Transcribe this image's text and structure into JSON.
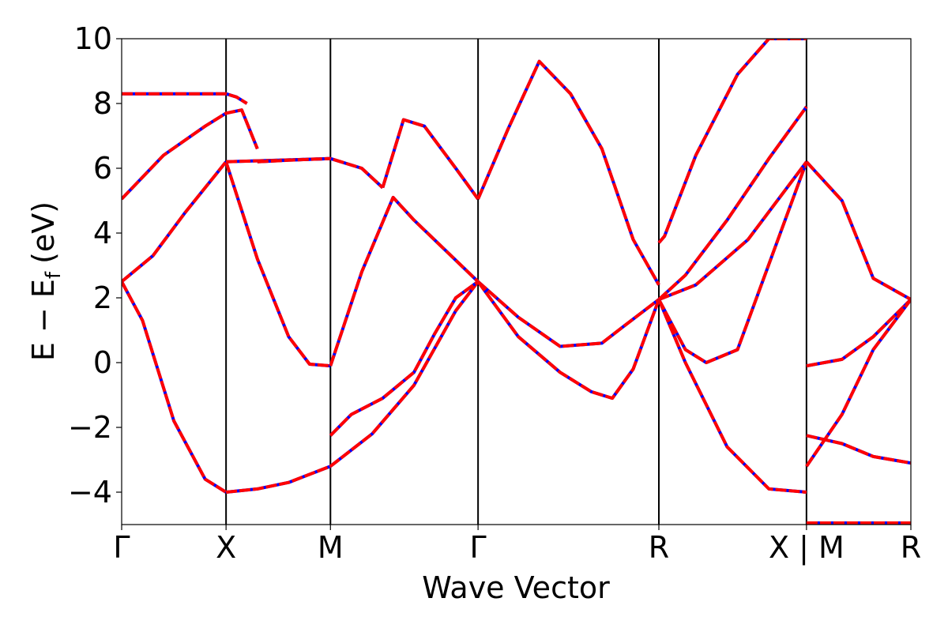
{
  "chart_data": {
    "type": "line",
    "xlabel": "Wave Vector",
    "ylabel": "E − E",
    "ylabel_sub": "f",
    "ylabel_unit": "(eV)",
    "ylim": [
      -5,
      10
    ],
    "y_ticks": [
      -4,
      -2,
      0,
      2,
      4,
      6,
      8,
      10
    ],
    "y_tick_labels": [
      "−4",
      "−2",
      "0",
      "2",
      "4",
      "6",
      "8",
      "10"
    ],
    "x_ticks": [
      0,
      1,
      2,
      3.414,
      5.146,
      6.56,
      7.56
    ],
    "x_tick_labels": [
      "Γ",
      "X",
      "M",
      "Γ",
      "R",
      "X | M",
      "R"
    ],
    "xlim": [
      0,
      7.56
    ],
    "grid": false,
    "line_colors": {
      "primary": "#0000ff",
      "overlay": "#ff0000"
    },
    "bands": [
      {
        "x": [
          0,
          0.2,
          0.5,
          0.8,
          1.0
        ],
        "y": [
          2.5,
          1.3,
          -1.8,
          -3.6,
          -4.0
        ]
      },
      {
        "x": [
          1.0,
          1.3,
          1.6,
          2.0
        ],
        "y": [
          -4.0,
          -3.9,
          -3.7,
          -3.2
        ]
      },
      {
        "x": [
          2.0,
          2.4,
          2.8,
          3.2,
          3.414
        ],
        "y": [
          -3.2,
          -2.2,
          -0.7,
          1.6,
          2.5
        ]
      },
      {
        "x": [
          2.0,
          2.2,
          2.5,
          2.8,
          3.0,
          3.2,
          3.414
        ],
        "y": [
          -2.25,
          -1.6,
          -1.1,
          -0.3,
          0.9,
          2.0,
          2.5
        ]
      },
      {
        "x": [
          1.0,
          1.3,
          1.6,
          1.8,
          2.0
        ],
        "y": [
          6.2,
          3.2,
          0.8,
          -0.05,
          -0.1
        ]
      },
      {
        "x": [
          0,
          0.3,
          0.6,
          0.9,
          1.0
        ],
        "y": [
          2.5,
          3.3,
          4.6,
          5.8,
          6.2
        ]
      },
      {
        "x": [
          1.0,
          1.5,
          2.0,
          2.3,
          2.5
        ],
        "y": [
          6.2,
          6.25,
          6.3,
          6.0,
          5.4
        ]
      },
      {
        "x": [
          2.0,
          2.3,
          2.6,
          2.8,
          3.414
        ],
        "y": [
          -0.1,
          2.8,
          5.1,
          4.4,
          2.5
        ]
      },
      {
        "x": [
          0,
          0.4,
          0.8,
          1.0,
          1.15,
          1.3
        ],
        "y": [
          5.05,
          6.4,
          7.3,
          7.7,
          7.8,
          6.6
        ]
      },
      {
        "x": [
          1.3,
          1.6,
          2.0
        ],
        "y": [
          6.2,
          6.25,
          6.3
        ]
      },
      {
        "x": [
          2.5,
          2.7,
          2.9,
          3.2,
          3.414
        ],
        "y": [
          5.4,
          7.5,
          7.3,
          6.0,
          5.05
        ]
      },
      {
        "x": [
          0,
          0.5,
          1.0,
          1.1,
          1.2
        ],
        "y": [
          8.3,
          8.3,
          8.3,
          8.2,
          8.0
        ]
      },
      {
        "x": [
          3.414,
          3.8,
          4.2,
          4.6,
          4.8,
          5.146
        ],
        "y": [
          2.5,
          1.4,
          0.5,
          0.6,
          1.1,
          1.95
        ]
      },
      {
        "x": [
          3.414,
          3.8,
          4.2,
          4.5,
          4.7,
          4.9,
          5.146
        ],
        "y": [
          2.5,
          0.8,
          -0.3,
          -0.9,
          -1.1,
          -0.2,
          1.95
        ]
      },
      {
        "x": [
          3.414,
          3.7,
          4.0,
          4.3,
          4.6,
          4.9,
          5.146
        ],
        "y": [
          5.05,
          7.2,
          9.3,
          8.3,
          6.6,
          3.8,
          2.4
        ]
      },
      {
        "x": [
          5.146,
          5.4,
          5.8,
          6.2,
          6.56
        ],
        "y": [
          1.95,
          0.0,
          -2.6,
          -3.9,
          -4.0
        ]
      },
      {
        "x": [
          5.146,
          5.4,
          5.6,
          5.9,
          6.56
        ],
        "y": [
          1.95,
          0.4,
          0.0,
          0.4,
          6.2
        ]
      },
      {
        "x": [
          5.146,
          5.5,
          6.0,
          6.56
        ],
        "y": [
          1.95,
          2.4,
          3.8,
          6.2
        ]
      },
      {
        "x": [
          5.146,
          5.4,
          5.8,
          6.2,
          6.56
        ],
        "y": [
          1.95,
          2.7,
          4.4,
          6.3,
          7.9
        ]
      },
      {
        "x": [
          5.146,
          5.2,
          5.5,
          5.9,
          6.2,
          6.56
        ],
        "y": [
          3.7,
          3.9,
          6.4,
          8.9,
          10.0,
          10.0
        ]
      },
      {
        "x": [
          6.56,
          6.9,
          7.2,
          7.56
        ],
        "y": [
          6.2,
          5.0,
          2.6,
          1.95
        ]
      },
      {
        "x": [
          6.56,
          6.9,
          7.2,
          7.56
        ],
        "y": [
          -0.1,
          0.1,
          0.8,
          1.95
        ]
      },
      {
        "x": [
          6.56,
          6.9,
          7.2,
          7.56
        ],
        "y": [
          -2.25,
          -2.5,
          -2.9,
          -3.1
        ]
      },
      {
        "x": [
          6.56,
          6.9,
          7.2,
          7.56
        ],
        "y": [
          -3.2,
          -1.6,
          0.4,
          1.95
        ]
      },
      {
        "x": [
          6.56,
          7.56
        ],
        "y": [
          -4.95,
          -4.95
        ]
      }
    ]
  }
}
